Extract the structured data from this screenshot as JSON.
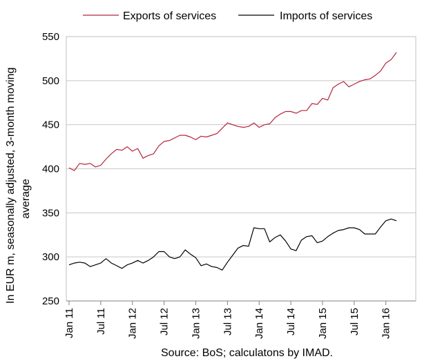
{
  "chart_data": {
    "type": "line",
    "title": "",
    "ylabel": "In EUR m, seasonally adjusted, 3-month moving average",
    "ylabel_lines": [
      "In EUR m, seasonally adjusted, 3-month moving",
      "average"
    ],
    "xlabel": "",
    "source": "Source: BoS; calculatons by IMAD.",
    "ylim": [
      250,
      550
    ],
    "yticks": [
      250,
      300,
      350,
      400,
      450,
      500,
      550
    ],
    "grid": true,
    "legend_position": "top",
    "x_ticks": [
      {
        "label": "Jan 11",
        "index": 0
      },
      {
        "label": "Jul 11",
        "index": 6
      },
      {
        "label": "Jan 12",
        "index": 12
      },
      {
        "label": "Jul 12",
        "index": 18
      },
      {
        "label": "Jan 13",
        "index": 24
      },
      {
        "label": "Jul 13",
        "index": 30
      },
      {
        "label": "Jan 14",
        "index": 36
      },
      {
        "label": "Jul 14",
        "index": 42
      },
      {
        "label": "Jan 15",
        "index": 48
      },
      {
        "label": "Jul 15",
        "index": 54
      },
      {
        "label": "Jan 16",
        "index": 60
      }
    ],
    "x_months_total": 64,
    "series": [
      {
        "name": "Exports of services",
        "color": "#b5233b",
        "values": [
          401,
          398,
          406,
          405,
          406,
          402,
          404,
          411,
          417,
          422,
          421,
          425,
          420,
          423,
          412,
          415,
          417,
          426,
          431,
          432,
          435,
          438,
          438,
          436,
          433,
          437,
          436,
          438,
          440,
          446,
          452,
          450,
          448,
          447,
          448,
          452,
          447,
          450,
          451,
          458,
          462,
          465,
          465,
          463,
          466,
          466,
          474,
          473,
          480,
          478,
          492,
          496,
          499,
          493,
          496,
          499,
          501,
          502,
          506,
          511,
          520,
          524,
          532
        ]
      },
      {
        "name": "Imports of services",
        "color": "#000000",
        "values": [
          291,
          293,
          294,
          293,
          289,
          291,
          293,
          298,
          293,
          290,
          287,
          291,
          293,
          296,
          293,
          296,
          300,
          306,
          306,
          300,
          298,
          300,
          308,
          303,
          299,
          290,
          292,
          289,
          288,
          285,
          294,
          302,
          310,
          313,
          312,
          333,
          332,
          332,
          317,
          322,
          325,
          318,
          309,
          307,
          319,
          323,
          324,
          316,
          318,
          323,
          327,
          330,
          331,
          333,
          333,
          331,
          326,
          326,
          326,
          334,
          341,
          343,
          341
        ]
      }
    ]
  }
}
